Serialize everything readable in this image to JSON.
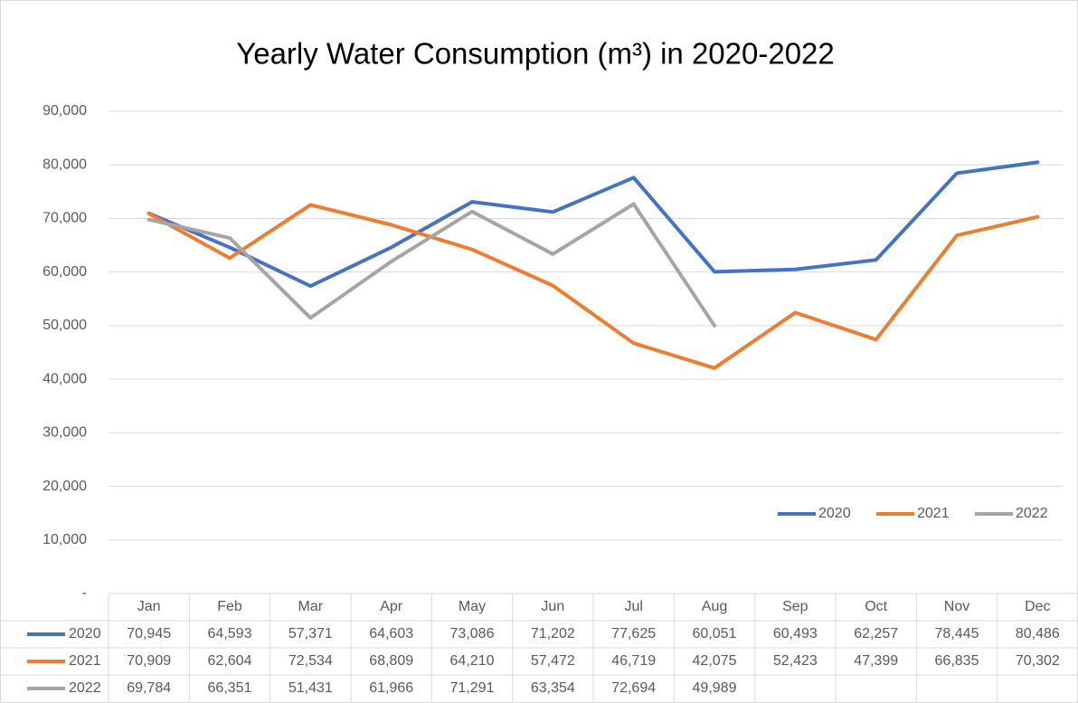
{
  "chart_data": {
    "type": "line",
    "title": "Yearly Water Consumption (m³) in 2020-2022",
    "categories": [
      "Jan",
      "Feb",
      "Mar",
      "Apr",
      "May",
      "Jun",
      "Jul",
      "Aug",
      "Sep",
      "Oct",
      "Nov",
      "Dec"
    ],
    "series": [
      {
        "name": "2020",
        "color": "#4472c4",
        "values": [
          70945,
          64593,
          57371,
          64603,
          73086,
          71202,
          77625,
          60051,
          60493,
          62257,
          78445,
          80486
        ],
        "value_labels": [
          "70,945",
          "64,593",
          "57,371",
          "64,603",
          "73,086",
          "71,202",
          "77,625",
          "60,051",
          "60,493",
          "62,257",
          "78,445",
          "80,486"
        ]
      },
      {
        "name": "2021",
        "color": "#ed7d31",
        "values": [
          70909,
          62604,
          72534,
          68809,
          64210,
          57472,
          46719,
          42075,
          52423,
          47399,
          66835,
          70302
        ],
        "value_labels": [
          "70,909",
          "62,604",
          "72,534",
          "68,809",
          "64,210",
          "57,472",
          "46,719",
          "42,075",
          "52,423",
          "47,399",
          "66,835",
          "70,302"
        ]
      },
      {
        "name": "2022",
        "color": "#a5a5a5",
        "values": [
          69784,
          66351,
          51431,
          61966,
          71291,
          63354,
          72694,
          49989,
          null,
          null,
          null,
          null
        ],
        "value_labels": [
          "69,784",
          "66,351",
          "51,431",
          "61,966",
          "71,291",
          "63,354",
          "72,694",
          "49,989",
          null,
          null,
          null,
          null
        ]
      }
    ],
    "ylim": [
      0,
      90000
    ],
    "yticks": [
      {
        "value": 0,
        "label": "-"
      },
      {
        "value": 10000,
        "label": "10,000"
      },
      {
        "value": 20000,
        "label": "20,000"
      },
      {
        "value": 30000,
        "label": "30,000"
      },
      {
        "value": 40000,
        "label": "40,000"
      },
      {
        "value": 50000,
        "label": "50,000"
      },
      {
        "value": 60000,
        "label": "60,000"
      },
      {
        "value": 70000,
        "label": "70,000"
      },
      {
        "value": 80000,
        "label": "80,000"
      },
      {
        "value": 90000,
        "label": "90,000"
      }
    ],
    "grid": true,
    "legend": "right"
  }
}
